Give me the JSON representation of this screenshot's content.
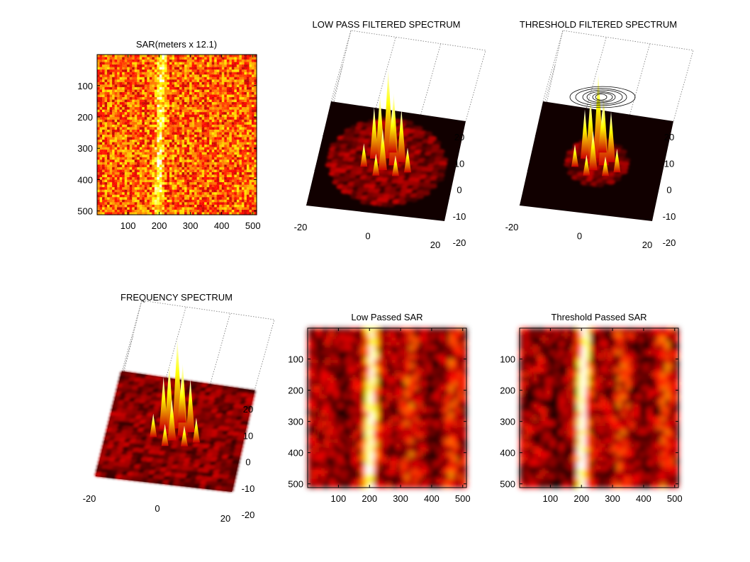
{
  "chart_data": [
    {
      "id": "sar",
      "type": "heatmap",
      "title": "SAR(meters x 12.1)",
      "colormap": "hot",
      "xlim": [
        1,
        512
      ],
      "ylim": [
        1,
        512
      ],
      "x_ticks": [
        100,
        200,
        300,
        400,
        500
      ],
      "y_ticks": [
        100,
        200,
        300,
        400,
        500
      ],
      "ridge_x": [
        210,
        195
      ],
      "smooth": false
    },
    {
      "id": "lowpass-spectrum",
      "type": "surface",
      "title": "LOW PASS FILTERED SPECTRUM",
      "colormap": "hot",
      "x_ticks": [
        -20,
        0,
        20
      ],
      "y_ticks": [
        20,
        10,
        0,
        -10,
        -20
      ],
      "filter": "lowpass",
      "contours": false
    },
    {
      "id": "threshold-spectrum",
      "type": "surface",
      "title": "THRESHOLD FILTERED SPECTRUM",
      "colormap": "hot",
      "x_ticks": [
        -20,
        0,
        20
      ],
      "y_ticks": [
        20,
        10,
        0,
        -10,
        -20
      ],
      "filter": "threshold",
      "contours": true
    },
    {
      "id": "frequency-spectrum",
      "type": "surface",
      "title": "FREQUENCY SPECTRUM",
      "colormap": "hot",
      "x_ticks": [
        -20,
        0,
        20
      ],
      "y_ticks": [
        20,
        10,
        0,
        -10,
        -20
      ],
      "filter": "none",
      "contours": false
    },
    {
      "id": "lowpass-sar",
      "type": "heatmap",
      "title": "Low Passed SAR",
      "colormap": "hot",
      "xlim": [
        1,
        512
      ],
      "ylim": [
        1,
        512
      ],
      "x_ticks": [
        100,
        200,
        300,
        400,
        500
      ],
      "y_ticks": [
        100,
        200,
        300,
        400,
        500
      ],
      "ridge_x": [
        210,
        200
      ],
      "smooth": true
    },
    {
      "id": "threshold-sar",
      "type": "heatmap",
      "title": "Threshold Passed SAR",
      "colormap": "hot",
      "xlim": [
        1,
        512
      ],
      "ylim": [
        1,
        512
      ],
      "x_ticks": [
        100,
        200,
        300,
        400,
        500
      ],
      "y_ticks": [
        100,
        200,
        300,
        400,
        500
      ],
      "ridge_x": [
        210,
        200
      ],
      "smooth": true
    }
  ]
}
